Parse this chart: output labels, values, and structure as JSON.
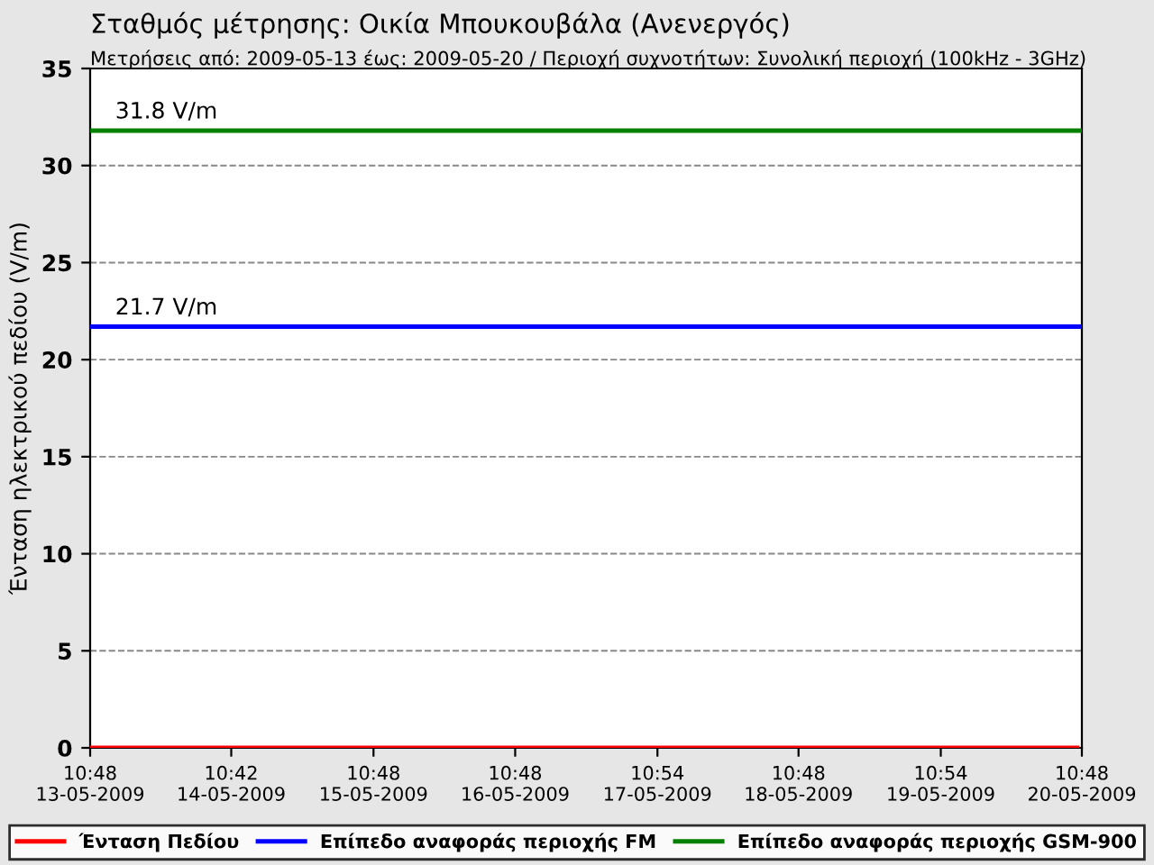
{
  "chart_data": {
    "type": "line",
    "title": "Σταθμός μέτρησης: Οικία Μπουκουβάλα (Ανενεργός)",
    "subtitle": "Μετρήσεις από: 2009-05-13 έως: 2009-05-20 / Περιοχή συχνοτήτων: Συνολική περιοχή (100kHz - 3GHz)",
    "ylabel": "Ένταση ηλεκτρικού πεδίου (V/m)",
    "series": [
      {
        "name": "Ένταση Πεδίου",
        "color": "#ff0000",
        "x": [
          "2009-05-13T10:48",
          "2009-05-20T10:00"
        ],
        "values": [
          0,
          0
        ]
      },
      {
        "name": "Επίπεδο αναφοράς περιοχής FM",
        "color": "#0000ff",
        "x": [
          "2009-05-13T10:48",
          "2009-05-20T10:48"
        ],
        "values": [
          21.7,
          21.7
        ]
      },
      {
        "name": "Επίπεδο αναφοράς περιοχής GSM-900",
        "color": "#008000",
        "x": [
          "2009-05-13T10:48",
          "2009-05-20T10:48"
        ],
        "values": [
          31.8,
          31.8
        ]
      }
    ],
    "annotations": [
      {
        "text": "21.7 V/m",
        "x": "2009-05-13T10:48",
        "y": 21.7
      },
      {
        "text": "31.8 V/m",
        "x": "2009-05-13T10:48",
        "y": 31.8
      }
    ],
    "xlim": [
      "2009-05-13T10:48",
      "2009-05-20T10:48"
    ],
    "xticks": [
      {
        "value": "2009-05-13T10:48",
        "label": "10:48\n13-05-2009"
      },
      {
        "value": "2009-05-14T10:42",
        "label": "10:42\n14-05-2009"
      },
      {
        "value": "2009-05-15T10:48",
        "label": "10:48\n15-05-2009"
      },
      {
        "value": "2009-05-16T10:48",
        "label": "10:48\n16-05-2009"
      },
      {
        "value": "2009-05-17T10:54",
        "label": "10:54\n17-05-2009"
      },
      {
        "value": "2009-05-18T10:48",
        "label": "10:48\n18-05-2009"
      },
      {
        "value": "2009-05-19T10:54",
        "label": "10:54\n19-05-2009"
      },
      {
        "value": "2009-05-20T10:48",
        "label": "10:48\n20-05-2009"
      }
    ],
    "ylim": [
      0,
      35
    ],
    "yticks": [
      0,
      5,
      10,
      15,
      20,
      25,
      30,
      35
    ],
    "grid": "y",
    "legend": "bottom",
    "marker": "none",
    "line_style": "solid"
  }
}
